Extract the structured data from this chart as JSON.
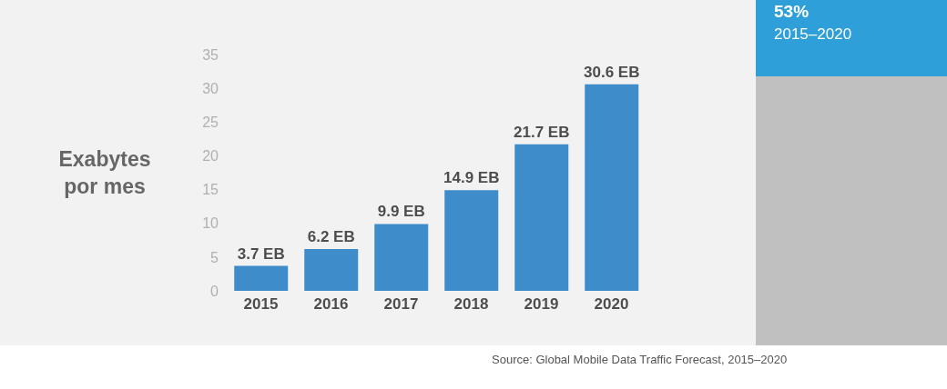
{
  "chart_data": {
    "type": "bar",
    "ylabel": "Exabytes por mes",
    "categories": [
      "2015",
      "2016",
      "2017",
      "2018",
      "2019",
      "2020"
    ],
    "values": [
      3.7,
      6.2,
      9.9,
      14.9,
      21.7,
      30.6
    ],
    "value_labels": [
      "3.7 EB",
      "6.2 EB",
      "9.9 EB",
      "14.9 EB",
      "21.7 EB",
      "30.6 EB"
    ],
    "color": "#3f8ccb",
    "ylim": [
      0,
      35
    ],
    "yticks": [
      0,
      5,
      10,
      15,
      20,
      25,
      30,
      35
    ],
    "annotations": [
      "53%",
      "2015–2020",
      "Source: Global Mobile Data Traffic Forecast, 2015–2020"
    ]
  }
}
